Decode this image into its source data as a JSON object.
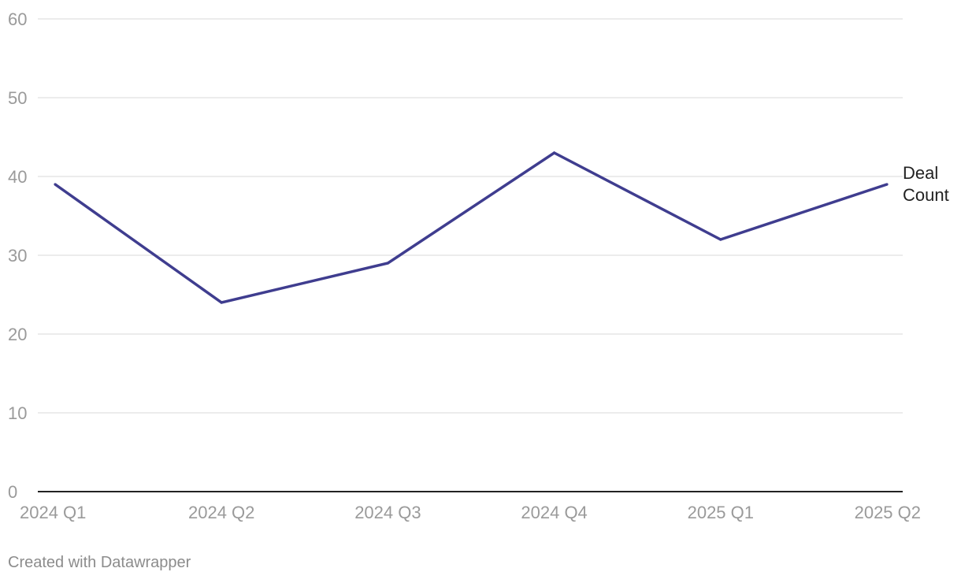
{
  "chart_data": {
    "type": "line",
    "categories": [
      "2024 Q1",
      "2024 Q2",
      "2024 Q3",
      "2024 Q4",
      "2025 Q1",
      "2025 Q2"
    ],
    "series": [
      {
        "name": "Deal Count",
        "label_lines": [
          "Deal",
          "Count"
        ],
        "values": [
          39,
          24,
          29,
          43,
          32,
          39
        ],
        "color": "#3f3d8f"
      }
    ],
    "y_ticks": [
      0,
      10,
      20,
      30,
      40,
      50,
      60
    ],
    "ylim": [
      0,
      60
    ],
    "grid": true,
    "grid_color": "#e0e0e0",
    "axis_color": "#222222",
    "title": "",
    "xlabel": "",
    "ylabel": ""
  },
  "footer": {
    "credit": "Created with Datawrapper"
  }
}
